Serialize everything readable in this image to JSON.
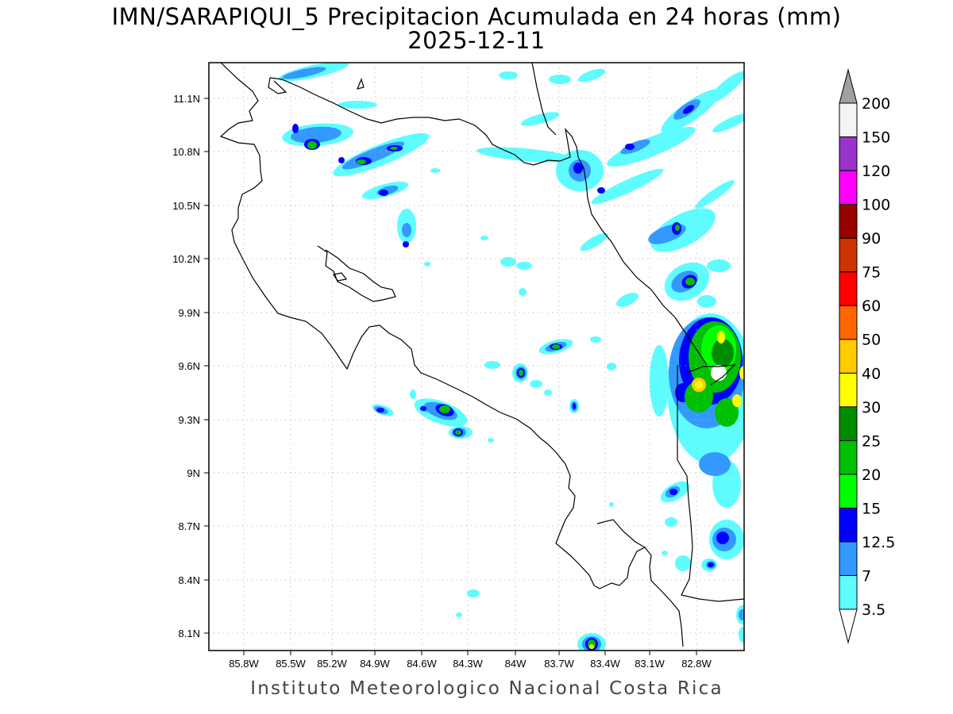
{
  "title_line1": "IMN/SARAPIQUI_5 Precipitacion Acumulada en 24 horas (mm)",
  "title_line2": "2025-12-11",
  "footer": "Instituto Meteorologico Nacional Costa Rica",
  "lon_ticks": [
    "85.8W",
    "85.5W",
    "85.2W",
    "84.9W",
    "84.6W",
    "84.3W",
    "84W",
    "83.7W",
    "83.4W",
    "83.1W",
    "82.8W"
  ],
  "lat_ticks": [
    "11.1N",
    "10.8N",
    "10.5N",
    "10.2N",
    "9.9N",
    "9.6N",
    "9.3N",
    "9N",
    "8.7N",
    "8.4N",
    "8.1N"
  ],
  "colorbar": {
    "labels": [
      "3.5",
      "7",
      "12.5",
      "15",
      "20",
      "25",
      "30",
      "40",
      "50",
      "60",
      "75",
      "90",
      "100",
      "120",
      "150",
      "200"
    ],
    "colors": [
      "#ffffff",
      "#5efcff",
      "#3399ff",
      "#0000ff",
      "#00ff00",
      "#00c000",
      "#008c00",
      "#ffff00",
      "#ffcc00",
      "#ff6600",
      "#ff0000",
      "#cc3300",
      "#990000",
      "#ff00ff",
      "#9933cc",
      "#f4f4f4",
      "#a0a0a0"
    ]
  },
  "legend_colors": {
    "3.5": "#5efcff",
    "7": "#3399ff",
    "12.5": "#0000ff",
    "15": "#00ff00",
    "20": "#00c000",
    "25": "#008c00",
    "30": "#ffff00",
    "40": "#ffcc00"
  }
}
